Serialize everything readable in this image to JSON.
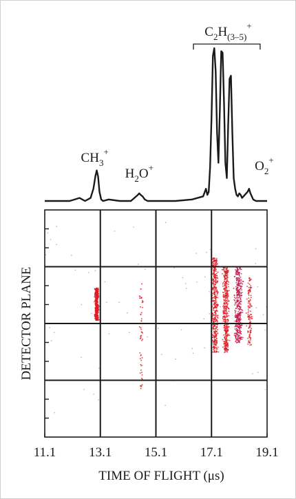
{
  "chart_data": [
    {
      "type": "line",
      "panel": "top",
      "title": "",
      "xlabel": "",
      "ylabel": "",
      "xlim": [
        11.1,
        19.1
      ],
      "ylim": [
        0,
        1
      ],
      "grid": false,
      "series": [
        {
          "x": [
            11.1,
            12.0,
            12.35,
            12.55,
            12.75,
            12.85,
            12.92,
            12.97,
            13.02,
            13.07,
            13.13,
            13.2,
            13.4,
            13.8,
            14.2,
            14.45,
            14.5,
            14.55,
            14.62,
            14.7,
            14.8,
            15.1,
            15.8,
            16.4,
            16.8,
            16.9,
            16.95,
            17.0,
            17.05,
            17.1,
            17.15,
            17.2,
            17.25,
            17.3,
            17.35,
            17.4,
            17.45,
            17.5,
            17.55,
            17.6,
            17.65,
            17.7,
            17.75,
            17.8,
            17.85,
            17.9,
            17.95,
            18.0,
            18.05,
            18.1,
            18.15,
            18.2,
            18.3,
            18.4,
            18.45,
            18.5,
            18.55,
            18.6,
            18.7,
            19.1
          ],
          "y": [
            0.0,
            0.0,
            0.02,
            0.0,
            0.02,
            0.08,
            0.16,
            0.2,
            0.16,
            0.06,
            0.01,
            0.0,
            0.01,
            0.0,
            0.0,
            0.04,
            0.05,
            0.04,
            0.03,
            0.01,
            0.0,
            0.0,
            0.0,
            0.01,
            0.03,
            0.08,
            0.04,
            0.06,
            0.22,
            0.55,
            0.95,
            1.0,
            0.85,
            0.45,
            0.25,
            0.6,
            0.98,
            0.97,
            0.65,
            0.25,
            0.15,
            0.5,
            0.8,
            0.82,
            0.45,
            0.15,
            0.08,
            0.04,
            0.03,
            0.05,
            0.04,
            0.02,
            0.04,
            0.06,
            0.08,
            0.05,
            0.03,
            0.01,
            0.0,
            0.0
          ]
        }
      ],
      "annotations": [
        {
          "base": "CH",
          "sub": "3",
          "sup": "+",
          "x": 12.9
        },
        {
          "base": "H",
          "sub": "2",
          "rest": "O",
          "sup": "+",
          "x": 14.5
        },
        {
          "base": "C",
          "sub": "2",
          "rest": "H",
          "sub2": "(3–5)",
          "sup": "+",
          "x": 17.7,
          "bracket": [
            16.45,
            18.85
          ]
        },
        {
          "base": "O",
          "sub": "2",
          "sup": "+",
          "x": 19.0
        }
      ]
    },
    {
      "type": "scatter",
      "panel": "bottom",
      "title": "",
      "xlabel": "TIME OF FLIGHT (μs)",
      "ylabel": "DETECTOR PLANE",
      "xlim": [
        11.1,
        19.1
      ],
      "ylim": [
        0,
        12
      ],
      "xticks": [
        11.1,
        13.1,
        15.1,
        17.1,
        19.1
      ],
      "xtick_labels": [
        "11.1",
        "13.1",
        "15.1",
        "17.1",
        "19.1"
      ],
      "yticks": [
        1,
        2,
        3,
        4,
        5,
        6,
        7,
        8,
        9,
        10,
        11
      ],
      "x_gridlines": [
        13.1,
        15.1,
        17.1
      ],
      "y_gridlines": [
        3,
        6,
        9
      ],
      "grid": true,
      "clusters": [
        {
          "x_center": 12.95,
          "x_spread": 0.06,
          "y_range": [
            6.2,
            7.9
          ],
          "density": "dense",
          "color": "#e01b24"
        },
        {
          "x_center": 14.55,
          "x_spread": 0.06,
          "y_range": [
            2.5,
            8.2
          ],
          "density": "sparse",
          "color": "#e01b24"
        },
        {
          "x_center": 17.2,
          "x_spread": 0.1,
          "y_range": [
            4.5,
            9.5
          ],
          "density": "dense",
          "color": "#e01b24"
        },
        {
          "x_center": 17.6,
          "x_spread": 0.1,
          "y_range": [
            4.5,
            9.0
          ],
          "density": "dense",
          "color": "#e01b24"
        },
        {
          "x_center": 18.05,
          "x_spread": 0.12,
          "y_range": [
            5.0,
            9.0
          ],
          "density": "dense",
          "color": "#c21b4e"
        },
        {
          "x_center": 18.45,
          "x_spread": 0.08,
          "y_range": [
            4.8,
            8.5
          ],
          "density": "medium",
          "color": "#e01b24"
        }
      ]
    }
  ]
}
